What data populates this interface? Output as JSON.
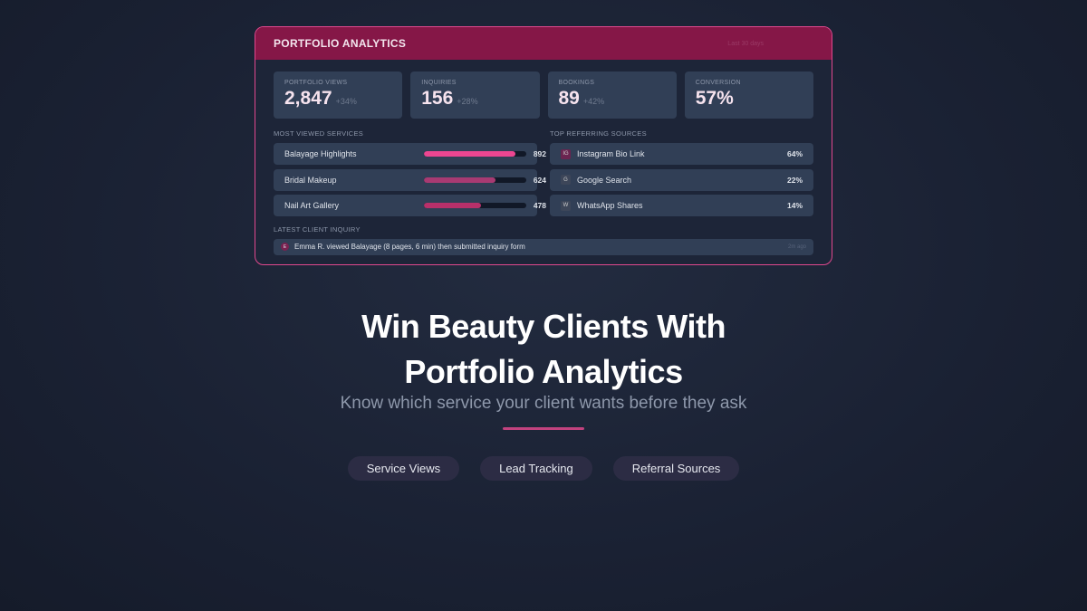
{
  "card": {
    "title": "PORTFOLIO ANALYTICS",
    "range": "Last 30 days",
    "stats": [
      {
        "label": "PORTFOLIO VIEWS",
        "value": "2,847",
        "delta": "+34%"
      },
      {
        "label": "INQUIRIES",
        "value": "156",
        "delta": "+28%"
      },
      {
        "label": "BOOKINGS",
        "value": "89",
        "delta": "+42%"
      },
      {
        "label": "CONVERSION",
        "value": "57%",
        "delta": ""
      }
    ],
    "services_title": "MOST VIEWED SERVICES",
    "services": [
      {
        "name": "Balayage Highlights",
        "views": "892",
        "fill": 0.89,
        "color": "#ec4691"
      },
      {
        "name": "Bridal Makeup",
        "views": "624",
        "fill": 0.7,
        "color": "#a83a72"
      },
      {
        "name": "Nail Art Gallery",
        "views": "478",
        "fill": 0.56,
        "color": "#b8306a"
      }
    ],
    "sources_title": "TOP REFERRING SOURCES",
    "sources": [
      {
        "icon": "instagram-icon",
        "glyph": "IG",
        "name": "Instagram Bio Link",
        "pct": "64%"
      },
      {
        "icon": "google-icon",
        "glyph": "G",
        "name": "Google Search",
        "pct": "22%"
      },
      {
        "icon": "whatsapp-icon",
        "glyph": "W",
        "name": "WhatsApp Shares",
        "pct": "14%"
      }
    ],
    "inquiry_title": "LATEST CLIENT INQUIRY",
    "inquiry": {
      "avatar": "E",
      "text": "Emma R. viewed Balayage (8 pages, 6 min) then submitted inquiry form",
      "time": "2m ago"
    }
  },
  "headline": [
    "Win Beauty Clients With",
    "Portfolio Analytics"
  ],
  "subtitle": "Know which service your client wants before they ask",
  "pills": [
    "Service Views",
    "Lead Tracking",
    "Referral Sources"
  ]
}
